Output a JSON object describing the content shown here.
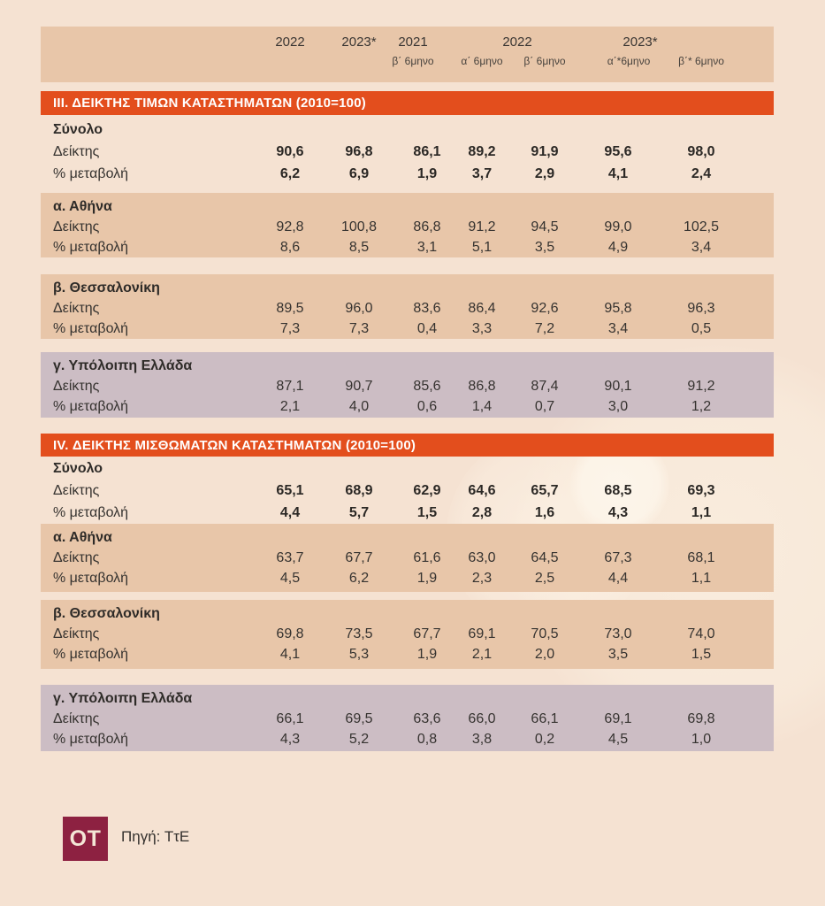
{
  "colors": {
    "page_background": "#f5e2d2",
    "tan_block": "#e8c6a9",
    "mauve_block": "#ccbdc4",
    "orange_bar": "#e34e1d",
    "bar_text": "#ffffff",
    "logo_maroon": "#8d2141",
    "text": "#33302d"
  },
  "header": {
    "years": [
      "2022",
      "2023*",
      "2021",
      "2022",
      "2023*"
    ],
    "semesters": [
      "β΄ 6μηνο",
      "α΄ 6μηνο",
      "β΄ 6μηνο",
      "α΄*6μηνο",
      "β΄* 6μηνο"
    ]
  },
  "sections": [
    {
      "title": "ΙΙΙ. ΔΕΙΚΤΗΣ ΤΙΜΩΝ ΚΑΤΑΣΤΗΜΑΤΩΝ (2010=100)",
      "groups": [
        {
          "id": "synolo",
          "name": "Σύνολο",
          "style": "plain",
          "bold_values": true,
          "rows": [
            {
              "label": "Δείκτης",
              "values": [
                "90,6",
                "96,8",
                "86,1",
                "89,2",
                "91,9",
                "95,6",
                "98,0"
              ]
            },
            {
              "label": "% μεταβολή",
              "values": [
                "6,2",
                "6,9",
                "1,9",
                "3,7",
                "2,9",
                "4,1",
                "2,4"
              ]
            }
          ]
        },
        {
          "id": "athens",
          "name": "α. Αθήνα",
          "style": "tan",
          "bold_values": false,
          "rows": [
            {
              "label": "Δείκτης",
              "values": [
                "92,8",
                "100,8",
                "86,8",
                "91,2",
                "94,5",
                "99,0",
                "102,5"
              ]
            },
            {
              "label": "% μεταβολή",
              "values": [
                "8,6",
                "8,5",
                "3,1",
                "5,1",
                "3,5",
                "4,9",
                "3,4"
              ]
            }
          ]
        },
        {
          "id": "thessaloniki",
          "name": "β. Θεσσαλονίκη",
          "style": "tan",
          "bold_values": false,
          "rows": [
            {
              "label": "Δείκτης",
              "values": [
                "89,5",
                "96,0",
                "83,6",
                "86,4",
                "92,6",
                "95,8",
                "96,3"
              ]
            },
            {
              "label": "% μεταβολή",
              "values": [
                "7,3",
                "7,3",
                "0,4",
                "3,3",
                "7,2",
                "3,4",
                "0,5"
              ]
            }
          ]
        },
        {
          "id": "rest-of-greece",
          "name": "γ. Υπόλοιπη Ελλάδα",
          "style": "mauve",
          "bold_values": false,
          "rows": [
            {
              "label": "Δείκτης",
              "values": [
                "87,1",
                "90,7",
                "85,6",
                "86,8",
                "87,4",
                "90,1",
                "91,2"
              ]
            },
            {
              "label": "% μεταβολή",
              "values": [
                "2,1",
                "4,0",
                "0,6",
                "1,4",
                "0,7",
                "3,0",
                "1,2"
              ]
            }
          ]
        }
      ]
    },
    {
      "title": "IV. ΔΕΙΚΤΗΣ ΜΙΣΘΩΜΑΤΩΝ ΚΑΤΑΣΤΗΜΑΤΩΝ (2010=100)",
      "groups": [
        {
          "id": "synolo",
          "name": "Σύνολο",
          "style": "plain",
          "bold_values": true,
          "rows": [
            {
              "label": "Δείκτης",
              "values": [
                "65,1",
                "68,9",
                "62,9",
                "64,6",
                "65,7",
                "68,5",
                "69,3"
              ]
            },
            {
              "label": "% μεταβολή",
              "values": [
                "4,4",
                "5,7",
                "1,5",
                "2,8",
                "1,6",
                "4,3",
                "1,1"
              ]
            }
          ]
        },
        {
          "id": "athens",
          "name": "α. Αθήνα",
          "style": "tan",
          "bold_values": false,
          "rows": [
            {
              "label": "Δείκτης",
              "values": [
                "63,7",
                "67,7",
                "61,6",
                "63,0",
                "64,5",
                "67,3",
                "68,1"
              ]
            },
            {
              "label": "% μεταβολή",
              "values": [
                "4,5",
                "6,2",
                "1,9",
                "2,3",
                "2,5",
                "4,4",
                "1,1"
              ]
            }
          ]
        },
        {
          "id": "thessaloniki",
          "name": "β. Θεσσαλονίκη",
          "style": "tan",
          "bold_values": false,
          "rows": [
            {
              "label": "Δείκτης",
              "values": [
                "69,8",
                "73,5",
                "67,7",
                "69,1",
                "70,5",
                "73,0",
                "74,0"
              ]
            },
            {
              "label": "% μεταβολή",
              "values": [
                "4,1",
                "5,3",
                "1,9",
                "2,1",
                "2,0",
                "3,5",
                "1,5"
              ]
            }
          ]
        },
        {
          "id": "rest-of-greece",
          "name": "γ. Υπόλοιπη Ελλάδα",
          "style": "mauve",
          "bold_values": false,
          "rows": [
            {
              "label": "Δείκτης",
              "values": [
                "66,1",
                "69,5",
                "63,6",
                "66,0",
                "66,1",
                "69,1",
                "69,8"
              ]
            },
            {
              "label": "% μεταβολή",
              "values": [
                "4,3",
                "5,2",
                "0,8",
                "3,8",
                "0,2",
                "4,5",
                "1,0"
              ]
            }
          ]
        }
      ]
    }
  ],
  "footer": {
    "logo": "OT",
    "source": "Πηγή: ΤτΕ"
  },
  "chart_data": {
    "type": "table",
    "title": "Δείκτες τιμών και μισθωμάτων καταστημάτων (2010=100)",
    "columns": [
      "2022",
      "2023*",
      "2021 β΄ 6μηνο",
      "2022 α΄ 6μηνο",
      "2022 β΄ 6μηνο",
      "2023* α΄* 6μηνο",
      "2023* β΄* 6μηνο"
    ],
    "tables": [
      {
        "title": "ΙΙΙ. ΔΕΙΚΤΗΣ ΤΙΜΩΝ ΚΑΤΑΣΤΗΜΑΤΩΝ (2010=100)",
        "rows": [
          {
            "group": "Σύνολο",
            "index": [
              90.6,
              96.8,
              86.1,
              89.2,
              91.9,
              95.6,
              98.0
            ],
            "pct_change": [
              6.2,
              6.9,
              1.9,
              3.7,
              2.9,
              4.1,
              2.4
            ]
          },
          {
            "group": "α. Αθήνα",
            "index": [
              92.8,
              100.8,
              86.8,
              91.2,
              94.5,
              99.0,
              102.5
            ],
            "pct_change": [
              8.6,
              8.5,
              3.1,
              5.1,
              3.5,
              4.9,
              3.4
            ]
          },
          {
            "group": "β. Θεσσαλονίκη",
            "index": [
              89.5,
              96.0,
              83.6,
              86.4,
              92.6,
              95.8,
              96.3
            ],
            "pct_change": [
              7.3,
              7.3,
              0.4,
              3.3,
              7.2,
              3.4,
              0.5
            ]
          },
          {
            "group": "γ. Υπόλοιπη Ελλάδα",
            "index": [
              87.1,
              90.7,
              85.6,
              86.8,
              87.4,
              90.1,
              91.2
            ],
            "pct_change": [
              2.1,
              4.0,
              0.6,
              1.4,
              0.7,
              3.0,
              1.2
            ]
          }
        ]
      },
      {
        "title": "IV. ΔΕΙΚΤΗΣ ΜΙΣΘΩΜΑΤΩΝ ΚΑΤΑΣΤΗΜΑΤΩΝ (2010=100)",
        "rows": [
          {
            "group": "Σύνολο",
            "index": [
              65.1,
              68.9,
              62.9,
              64.6,
              65.7,
              68.5,
              69.3
            ],
            "pct_change": [
              4.4,
              5.7,
              1.5,
              2.8,
              1.6,
              4.3,
              1.1
            ]
          },
          {
            "group": "α. Αθήνα",
            "index": [
              63.7,
              67.7,
              61.6,
              63.0,
              64.5,
              67.3,
              68.1
            ],
            "pct_change": [
              4.5,
              6.2,
              1.9,
              2.3,
              2.5,
              4.4,
              1.1
            ]
          },
          {
            "group": "β. Θεσσαλονίκη",
            "index": [
              69.8,
              73.5,
              67.7,
              69.1,
              70.5,
              73.0,
              74.0
            ],
            "pct_change": [
              4.1,
              5.3,
              1.9,
              2.1,
              2.0,
              3.5,
              1.5
            ]
          },
          {
            "group": "γ. Υπόλοιπη Ελλάδα",
            "index": [
              66.1,
              69.5,
              63.6,
              66.0,
              66.1,
              69.1,
              69.8
            ],
            "pct_change": [
              4.3,
              5.2,
              0.8,
              3.8,
              0.2,
              4.5,
              1.0
            ]
          }
        ]
      }
    ],
    "source": "Πηγή: ΤτΕ"
  }
}
